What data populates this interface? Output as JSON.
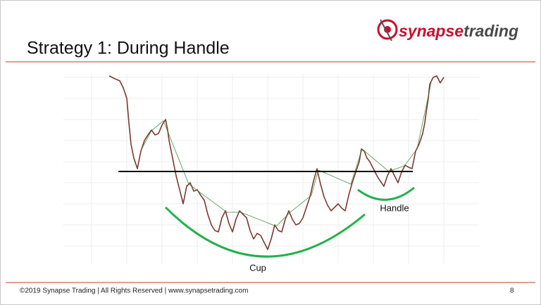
{
  "header": {
    "title": "Strategy 1: During Handle",
    "logo": [
      "synapse",
      "trading"
    ]
  },
  "chart": {
    "labels": {
      "cup": "Cup",
      "handle": "Handle"
    }
  },
  "footer": {
    "text": "©2019 Synapse Trading | All Rights Reserved | www.synapsetrading.com",
    "page": "8"
  }
}
